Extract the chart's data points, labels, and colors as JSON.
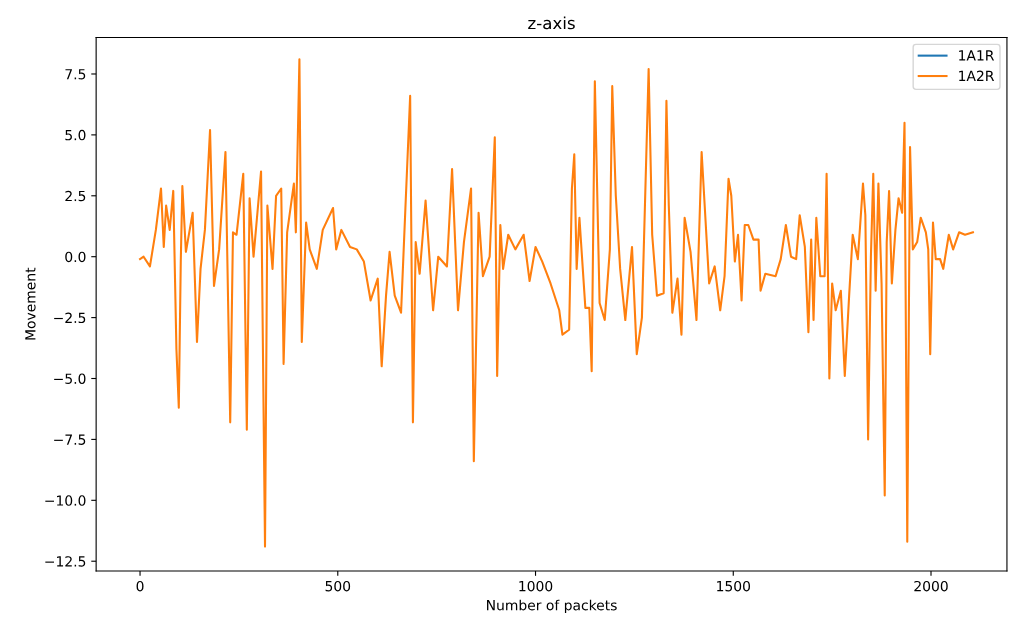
{
  "chart_data": {
    "type": "line",
    "title": "z-axis",
    "xlabel": "Number of packets",
    "ylabel": "Movement",
    "x": [
      0,
      9,
      25,
      40,
      53,
      60,
      66,
      75,
      84,
      92,
      98,
      103,
      107,
      116,
      133,
      144,
      153,
      164,
      177,
      187,
      200,
      216,
      228,
      235,
      244,
      261,
      270,
      277,
      287,
      306,
      316,
      322,
      335,
      344,
      357,
      363,
      372,
      389,
      394,
      403,
      409,
      420,
      429,
      447,
      462,
      488,
      496,
      509,
      531,
      548,
      566,
      583,
      601,
      611,
      622,
      631,
      644,
      660,
      671,
      683,
      690,
      697,
      707,
      722,
      741,
      754,
      776,
      789,
      804,
      819,
      837,
      844,
      856,
      867,
      884,
      897,
      903,
      911,
      918,
      931,
      949,
      970,
      985,
      1000,
      1017,
      1038,
      1060,
      1068,
      1085,
      1092,
      1098,
      1104,
      1111,
      1126,
      1136,
      1142,
      1150,
      1162,
      1175,
      1188,
      1194,
      1203,
      1214,
      1227,
      1244,
      1256,
      1269,
      1286,
      1295,
      1307,
      1324,
      1331,
      1337,
      1346,
      1359,
      1369,
      1377,
      1392,
      1407,
      1420,
      1439,
      1453,
      1467,
      1478,
      1488,
      1495,
      1504,
      1512,
      1521,
      1529,
      1538,
      1551,
      1564,
      1569,
      1581,
      1607,
      1620,
      1633,
      1646,
      1659,
      1668,
      1681,
      1690,
      1697,
      1703,
      1710,
      1720,
      1731,
      1736,
      1743,
      1750,
      1759,
      1772,
      1782,
      1793,
      1802,
      1815,
      1828,
      1834,
      1841,
      1848,
      1854,
      1860,
      1867,
      1875,
      1883,
      1888,
      1894,
      1901,
      1910,
      1918,
      1927,
      1933,
      1940,
      1947,
      1954,
      1965,
      1974,
      1987,
      1993,
      1998,
      2005,
      2012,
      2023,
      2031,
      2045,
      2056,
      2071,
      2086,
      2106
    ],
    "series": [
      {
        "name": "1A1R",
        "color": "#1f77b4",
        "values": [
          null,
          null,
          null,
          null,
          null,
          null,
          null,
          null,
          null,
          null,
          null,
          null,
          null,
          null,
          null,
          null,
          null,
          null,
          null,
          null,
          null,
          null,
          null,
          null,
          null,
          null,
          null,
          null,
          null,
          null,
          null,
          null,
          null,
          null,
          null,
          null,
          null,
          null,
          null,
          null,
          null,
          null,
          null,
          null,
          null,
          null,
          null,
          null,
          null,
          null,
          null,
          null,
          null,
          null,
          null,
          null,
          null,
          null,
          null,
          null,
          null,
          null,
          null,
          null,
          null,
          null,
          null,
          null,
          null,
          null,
          null,
          null,
          null,
          null,
          null,
          null,
          null,
          null,
          null,
          null,
          null,
          null,
          null,
          null,
          null,
          null,
          null,
          null,
          null,
          null,
          null,
          null,
          null,
          null,
          null,
          null,
          null,
          null,
          null,
          null,
          null,
          null,
          null,
          null,
          null,
          null,
          null,
          null,
          null,
          null,
          null,
          null,
          null,
          null,
          null,
          null,
          null,
          null,
          null,
          null,
          null,
          null,
          null,
          null,
          null,
          null,
          null,
          null,
          null,
          null,
          null,
          null,
          null,
          null,
          null,
          null,
          null,
          null,
          null,
          null,
          null,
          null,
          null,
          null,
          null,
          null,
          null,
          null,
          null,
          null,
          null,
          null,
          null,
          null,
          null,
          null,
          null,
          null,
          null,
          null,
          null,
          null,
          null,
          null,
          null,
          null,
          null,
          null,
          null,
          null,
          null,
          null,
          null,
          null,
          null,
          null,
          null,
          null,
          null,
          null,
          null,
          null,
          null,
          null,
          null,
          null,
          null,
          null,
          null,
          null
        ]
      },
      {
        "name": "1A2R",
        "color": "#ff7f0e",
        "values": [
          -0.1,
          0.0,
          -0.4,
          1.1,
          2.8,
          0.4,
          2.1,
          1.1,
          2.7,
          -3.8,
          -6.2,
          -0.2,
          2.9,
          0.2,
          1.8,
          -3.5,
          -0.5,
          1.1,
          5.2,
          -1.2,
          0.3,
          4.3,
          -6.8,
          1.0,
          0.9,
          3.4,
          -7.1,
          2.4,
          0.0,
          3.5,
          -11.9,
          2.1,
          -0.5,
          2.5,
          2.8,
          -4.4,
          1.0,
          3.0,
          1.0,
          8.1,
          -3.5,
          1.4,
          0.3,
          -0.5,
          1.1,
          2.0,
          0.3,
          1.1,
          0.4,
          0.3,
          -0.2,
          -1.8,
          -0.9,
          -4.5,
          -1.6,
          0.2,
          -1.6,
          -2.3,
          2.0,
          6.6,
          -6.8,
          0.6,
          -0.7,
          2.3,
          -2.2,
          0.0,
          -0.4,
          3.6,
          -2.2,
          0.6,
          2.8,
          -8.4,
          1.8,
          -0.8,
          0.0,
          4.9,
          -4.9,
          1.3,
          -0.5,
          0.9,
          0.3,
          0.9,
          -1.0,
          0.4,
          -0.2,
          -1.1,
          -2.2,
          -3.2,
          -3.0,
          2.8,
          4.2,
          -0.5,
          1.6,
          -2.1,
          -2.1,
          -4.7,
          7.2,
          -1.9,
          -2.6,
          0.3,
          7.0,
          2.5,
          -0.5,
          -2.6,
          0.4,
          -4.0,
          -2.5,
          7.7,
          0.9,
          -1.6,
          -1.5,
          6.4,
          2.1,
          -2.3,
          -0.9,
          -3.2,
          1.6,
          0.2,
          -2.6,
          4.3,
          -1.1,
          -0.4,
          -2.2,
          -0.8,
          3.2,
          2.5,
          -0.2,
          0.9,
          -1.8,
          1.3,
          1.3,
          0.7,
          0.7,
          -1.4,
          -0.7,
          -0.8,
          -0.1,
          1.3,
          0.0,
          -0.1,
          1.7,
          0.4,
          -3.1,
          0.7,
          -2.6,
          1.6,
          -0.8,
          -0.8,
          3.4,
          -5.0,
          -1.1,
          -2.2,
          -1.4,
          -4.9,
          -1.6,
          0.9,
          -0.1,
          3.0,
          1.7,
          -7.5,
          0.0,
          3.4,
          -1.4,
          3.0,
          -1.1,
          -9.8,
          0.6,
          2.7,
          -1.1,
          1.1,
          2.4,
          1.8,
          5.5,
          -11.7,
          4.5,
          0.3,
          0.6,
          1.6,
          1.0,
          0.3,
          -4.0,
          1.4,
          -0.1,
          -0.1,
          -0.5,
          0.9,
          0.3,
          1.0,
          0.9,
          1.0
        ]
      }
    ],
    "xlim": [
      -111,
      2192
    ],
    "ylim": [
      -12.9,
      9.0
    ],
    "xticks": [
      0,
      500,
      1000,
      1500,
      2000
    ],
    "yticks": [
      {
        "value": -12.5,
        "label": "−12.5"
      },
      {
        "value": -10,
        "label": "−10.0"
      },
      {
        "value": -7.5,
        "label": "−7.5"
      },
      {
        "value": -5,
        "label": "−5.0"
      },
      {
        "value": -2.5,
        "label": "−2.5"
      },
      {
        "value": 0,
        "label": "0.0"
      },
      {
        "value": 2.5,
        "label": "2.5"
      },
      {
        "value": 5,
        "label": "5.0"
      },
      {
        "value": 7.5,
        "label": "7.5"
      }
    ],
    "legend": "top right",
    "grid": false
  }
}
